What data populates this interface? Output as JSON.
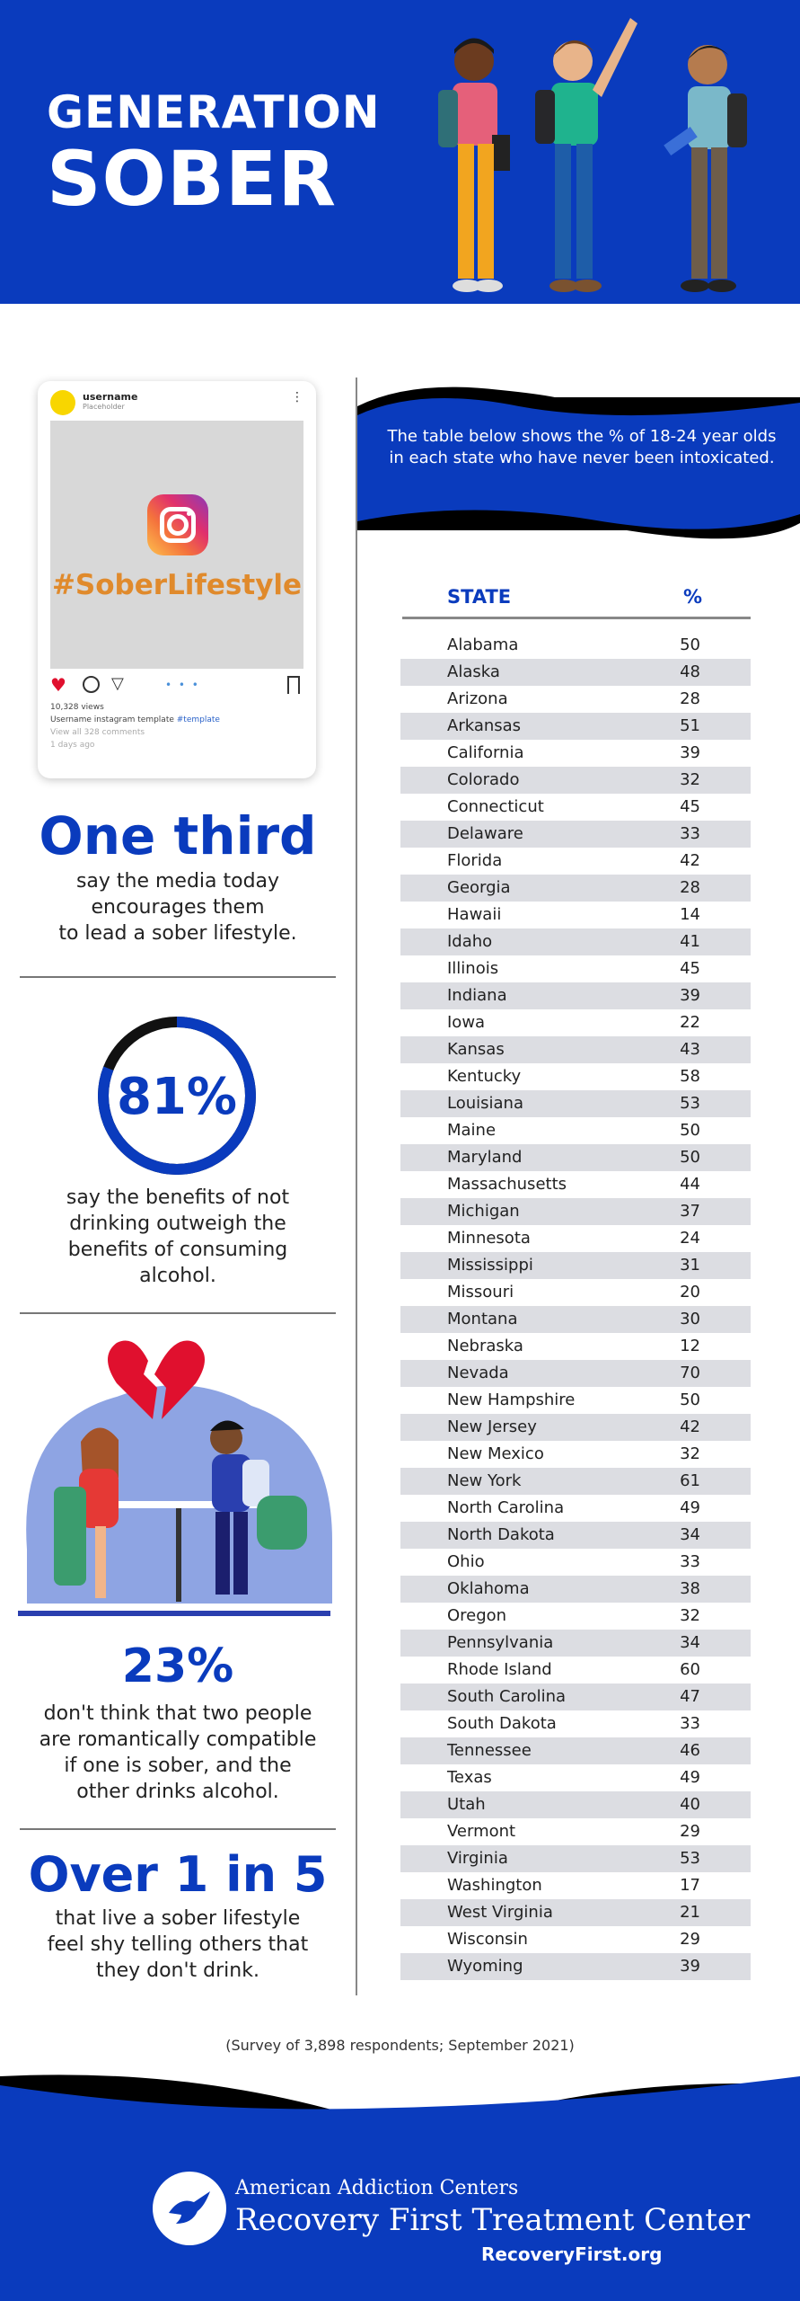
{
  "header": {
    "title_line1": "GENERATION",
    "title_line2": "SOBER"
  },
  "instagram": {
    "username": "username",
    "placeholder": "Placeholder",
    "hashtag": "#SoberLifestyle",
    "views": "10,328 views",
    "caption_user": "Username",
    "caption_text": "instagram template",
    "caption_tag": "#template",
    "comments": "View all 328 comments",
    "time": "1 days ago"
  },
  "stats": [
    {
      "big": "One third",
      "text": [
        "say the media today",
        "encourages them",
        "to lead a sober lifestyle."
      ]
    },
    {
      "big": "81%",
      "value": 81,
      "text": [
        "say the benefits of not",
        "drinking outweigh the",
        "benefits of consuming",
        "alcohol."
      ]
    },
    {
      "big": "23%",
      "text": [
        "don't think that two people",
        "are romantically compatible",
        "if one is sober, and the",
        "other drinks alcohol."
      ]
    },
    {
      "big": "Over 1 in 5",
      "text": [
        "that live a sober lifestyle",
        "feel shy telling others that",
        "they don't drink."
      ]
    }
  ],
  "table_note": "The table below shows the % of 18-24 year olds in each state who have never been intoxicated.",
  "table": {
    "headers": {
      "state": "STATE",
      "pct": "%"
    },
    "rows": [
      {
        "state": "Alabama",
        "pct": "50"
      },
      {
        "state": "Alaska",
        "pct": "48"
      },
      {
        "state": "Arizona",
        "pct": "28"
      },
      {
        "state": "Arkansas",
        "pct": "51"
      },
      {
        "state": "California",
        "pct": "39"
      },
      {
        "state": "Colorado",
        "pct": "32"
      },
      {
        "state": "Connecticut",
        "pct": "45"
      },
      {
        "state": "Delaware",
        "pct": "33"
      },
      {
        "state": "Florida",
        "pct": "42"
      },
      {
        "state": "Georgia",
        "pct": "28"
      },
      {
        "state": "Hawaii",
        "pct": "14"
      },
      {
        "state": "Idaho",
        "pct": "41"
      },
      {
        "state": "Illinois",
        "pct": "45"
      },
      {
        "state": "Indiana",
        "pct": "39"
      },
      {
        "state": "Iowa",
        "pct": "22"
      },
      {
        "state": "Kansas",
        "pct": "43"
      },
      {
        "state": "Kentucky",
        "pct": "58"
      },
      {
        "state": "Louisiana",
        "pct": "53"
      },
      {
        "state": "Maine",
        "pct": "50"
      },
      {
        "state": "Maryland",
        "pct": "50"
      },
      {
        "state": "Massachusetts",
        "pct": "44"
      },
      {
        "state": "Michigan",
        "pct": "37"
      },
      {
        "state": "Minnesota",
        "pct": "24"
      },
      {
        "state": "Mississippi",
        "pct": "31"
      },
      {
        "state": "Missouri",
        "pct": "20"
      },
      {
        "state": "Montana",
        "pct": "30"
      },
      {
        "state": "Nebraska",
        "pct": "12"
      },
      {
        "state": "Nevada",
        "pct": "70"
      },
      {
        "state": "New Hampshire",
        "pct": "50"
      },
      {
        "state": "New Jersey",
        "pct": "42"
      },
      {
        "state": "New Mexico",
        "pct": "32"
      },
      {
        "state": "New York",
        "pct": "61"
      },
      {
        "state": "North Carolina",
        "pct": "49"
      },
      {
        "state": "North Dakota",
        "pct": "34"
      },
      {
        "state": "Ohio",
        "pct": "33"
      },
      {
        "state": "Oklahoma",
        "pct": "38"
      },
      {
        "state": "Oregon",
        "pct": "32"
      },
      {
        "state": "Pennsylvania",
        "pct": "34"
      },
      {
        "state": "Rhode Island",
        "pct": "60"
      },
      {
        "state": "South Carolina",
        "pct": "47"
      },
      {
        "state": "South Dakota",
        "pct": "33"
      },
      {
        "state": "Tennessee",
        "pct": "46"
      },
      {
        "state": "Texas",
        "pct": "49"
      },
      {
        "state": "Utah",
        "pct": "40"
      },
      {
        "state": "Vermont",
        "pct": "29"
      },
      {
        "state": "Virginia",
        "pct": "53"
      },
      {
        "state": "Washington",
        "pct": "17"
      },
      {
        "state": "West Virginia",
        "pct": "21"
      },
      {
        "state": "Wisconsin",
        "pct": "29"
      },
      {
        "state": "Wyoming",
        "pct": "39"
      }
    ]
  },
  "survey_note": "(Survey of 3,898 respondents; September 2021)",
  "footer": {
    "brand_line1": "American Addiction Centers",
    "brand_line2": "Recovery First Treatment Center",
    "url": "RecoveryFirst.org"
  },
  "colors": {
    "brand_blue": "#0a3bbd",
    "row_alt": "#dcdde2",
    "heart_red": "#e0102e"
  },
  "icons": [
    "people-illustration",
    "instagram-logo-icon",
    "heart-icon",
    "comment-icon",
    "send-icon",
    "bookmark-icon",
    "broken-heart-icon",
    "bird-logo-icon"
  ]
}
